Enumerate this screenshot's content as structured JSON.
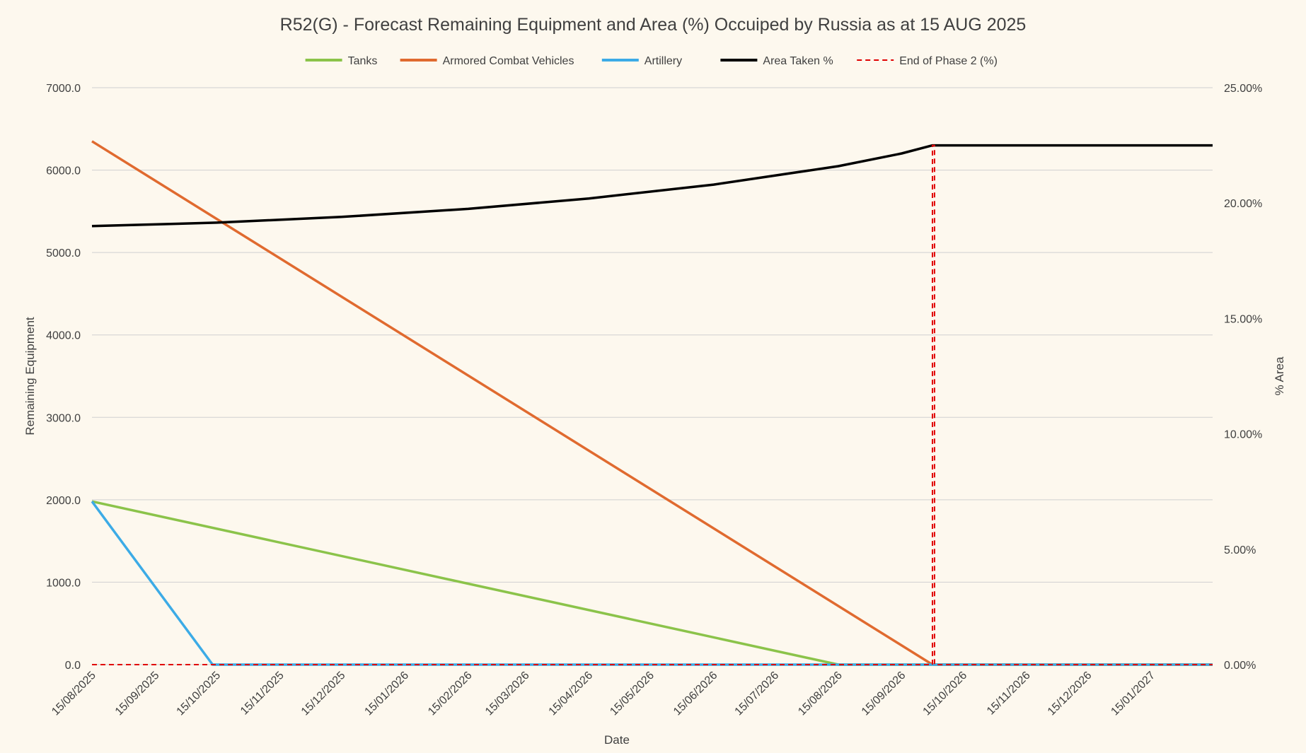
{
  "chart_data": {
    "type": "line",
    "title": "R52(G) - Forecast Remaining Equipment and Area (%) Occuiped by Russia as at 15 AUG 2025",
    "xlabel": "Date",
    "ylabel": "Remaining Equipment",
    "y2label": "% Area",
    "ylim": [
      0,
      7000
    ],
    "y2lim": [
      0,
      25
    ],
    "y_ticks": [
      "0.0",
      "1000.0",
      "2000.0",
      "3000.0",
      "4000.0",
      "5000.0",
      "6000.0",
      "7000.0"
    ],
    "y2_ticks": [
      "0.00%",
      "5.00%",
      "10.00%",
      "15.00%",
      "20.00%",
      "25.00%"
    ],
    "x_ticks": [
      "15/08/2025",
      "15/09/2025",
      "15/10/2025",
      "15/11/2025",
      "15/12/2025",
      "15/01/2026",
      "15/02/2026",
      "15/03/2026",
      "15/04/2026",
      "15/05/2026",
      "15/06/2026",
      "15/07/2026",
      "15/08/2026",
      "15/09/2026",
      "15/10/2026",
      "15/11/2026",
      "15/12/2026",
      "15/01/2027"
    ],
    "x_range": [
      "2025-08-15",
      "2027-02-14"
    ],
    "legend_position": "top",
    "grid": true,
    "series": [
      {
        "name": "Tanks",
        "axis": "left",
        "color": "#8bc34a",
        "dash": false,
        "points": [
          [
            "2025-08-15",
            1980
          ],
          [
            "2026-08-15",
            0
          ],
          [
            "2027-02-14",
            0
          ]
        ]
      },
      {
        "name": "Armored Combat Vehicles",
        "axis": "left",
        "color": "#e06a2f",
        "dash": false,
        "points": [
          [
            "2025-08-15",
            6350
          ],
          [
            "2026-09-30",
            0
          ],
          [
            "2027-02-14",
            0
          ]
        ]
      },
      {
        "name": "Artillery",
        "axis": "left",
        "color": "#3cabe6",
        "dash": false,
        "points": [
          [
            "2025-08-15",
            1980
          ],
          [
            "2025-10-13",
            0
          ],
          [
            "2027-02-14",
            0
          ]
        ]
      },
      {
        "name": "Area Taken %",
        "axis": "right",
        "color": "#000000",
        "dash": false,
        "points": [
          [
            "2025-08-15",
            19.0
          ],
          [
            "2025-10-15",
            19.15
          ],
          [
            "2025-12-15",
            19.4
          ],
          [
            "2026-02-15",
            19.75
          ],
          [
            "2026-04-15",
            20.2
          ],
          [
            "2026-06-15",
            20.8
          ],
          [
            "2026-08-15",
            21.6
          ],
          [
            "2026-09-15",
            22.15
          ],
          [
            "2026-09-30",
            22.5
          ],
          [
            "2027-02-14",
            22.5
          ]
        ]
      },
      {
        "name": "End of Phase 2 (%)",
        "axis": "right",
        "color": "#e00000",
        "dash": true,
        "points": [
          [
            "2025-08-15",
            0
          ],
          [
            "2026-09-30",
            0
          ],
          [
            "2026-09-30",
            22.5
          ],
          [
            "2026-10-01",
            22.5
          ],
          [
            "2026-10-01",
            0
          ],
          [
            "2027-02-14",
            0
          ]
        ]
      }
    ]
  }
}
